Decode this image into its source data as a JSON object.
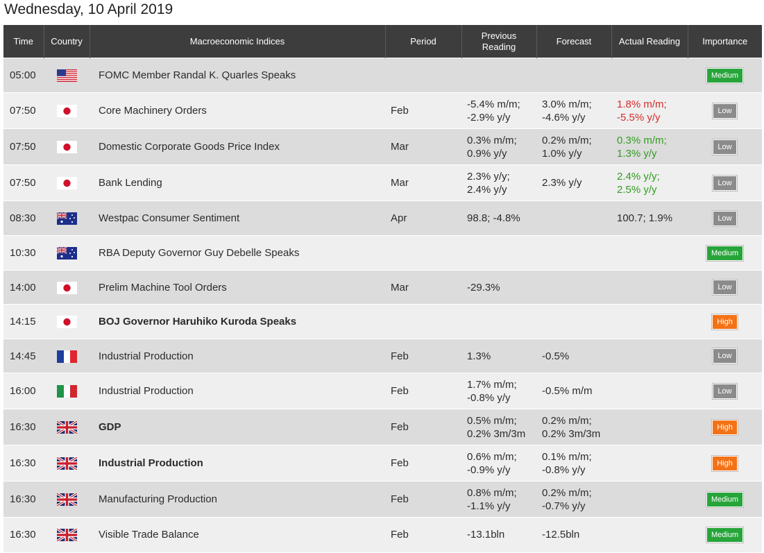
{
  "date_title": "Wednesday, 10 April 2019",
  "headers": {
    "time": "Time",
    "country": "Country",
    "indices": "Macroeconomic Indices",
    "period": "Period",
    "previous_line1": "Previous",
    "previous_line2": "Reading",
    "forecast": "Forecast",
    "actual": "Actual Reading",
    "importance": "Importance"
  },
  "rows": [
    {
      "time": "05:00",
      "flag": "us",
      "event": "FOMC Member Randal K. Quarles Speaks",
      "period": "",
      "prev": [
        "",
        ""
      ],
      "fore": [
        "",
        ""
      ],
      "actual": [
        "",
        ""
      ],
      "actual_class": "",
      "importance": "Medium",
      "bold": false
    },
    {
      "time": "07:50",
      "flag": "jp",
      "event": "Core Machinery Orders",
      "period": "Feb",
      "prev": [
        "-5.4% m/m;",
        "-2.9% y/y"
      ],
      "fore": [
        "3.0% m/m;",
        "-4.6% y/y"
      ],
      "actual": [
        "1.8% m/m;",
        "-5.5% y/y"
      ],
      "actual_class": "neg",
      "importance": "Low",
      "bold": false
    },
    {
      "time": "07:50",
      "flag": "jp",
      "event": "Domestic Corporate Goods Price Index",
      "period": "Mar",
      "prev": [
        "0.3% m/m;",
        "0.9% y/y"
      ],
      "fore": [
        "0.2% m/m;",
        "1.0% y/y"
      ],
      "actual": [
        "0.3% m/m;",
        "1.3% y/y"
      ],
      "actual_class": "pos",
      "importance": "Low",
      "bold": false
    },
    {
      "time": "07:50",
      "flag": "jp",
      "event": "Bank Lending",
      "period": "Mar",
      "prev": [
        "2.3% y/y;",
        "2.4% y/y"
      ],
      "fore": [
        "2.3% y/y",
        ""
      ],
      "actual": [
        "2.4% y/y;",
        "2.5% y/y"
      ],
      "actual_class": "pos",
      "importance": "Low",
      "bold": false
    },
    {
      "time": "08:30",
      "flag": "au",
      "event": "Westpac Consumer Sentiment",
      "period": "Apr",
      "prev": [
        "98.8; -4.8%",
        ""
      ],
      "fore": [
        "",
        ""
      ],
      "actual": [
        "100.7; 1.9%",
        ""
      ],
      "actual_class": "",
      "importance": "Low",
      "bold": false
    },
    {
      "time": "10:30",
      "flag": "au",
      "event": "RBA Deputy Governor Guy Debelle Speaks",
      "period": "",
      "prev": [
        "",
        ""
      ],
      "fore": [
        "",
        ""
      ],
      "actual": [
        "",
        ""
      ],
      "actual_class": "",
      "importance": "Medium",
      "bold": false
    },
    {
      "time": "14:00",
      "flag": "jp",
      "event": "Prelim Machine Tool Orders",
      "period": "Mar",
      "prev": [
        "-29.3%",
        ""
      ],
      "fore": [
        "",
        ""
      ],
      "actual": [
        "",
        ""
      ],
      "actual_class": "",
      "importance": "Low",
      "bold": false
    },
    {
      "time": "14:15",
      "flag": "jp",
      "event": "BOJ Governor Haruhiko Kuroda Speaks",
      "period": "",
      "prev": [
        "",
        ""
      ],
      "fore": [
        "",
        ""
      ],
      "actual": [
        "",
        ""
      ],
      "actual_class": "",
      "importance": "High",
      "bold": true
    },
    {
      "time": "14:45",
      "flag": "fr",
      "event": "Industrial Production",
      "period": "Feb",
      "prev": [
        "1.3%",
        ""
      ],
      "fore": [
        "-0.5%",
        ""
      ],
      "actual": [
        "",
        ""
      ],
      "actual_class": "",
      "importance": "Low",
      "bold": false
    },
    {
      "time": "16:00",
      "flag": "it",
      "event": "Industrial Production",
      "period": "Feb",
      "prev": [
        "1.7% m/m;",
        "-0.8% y/y"
      ],
      "fore": [
        "-0.5% m/m",
        ""
      ],
      "actual": [
        "",
        ""
      ],
      "actual_class": "",
      "importance": "Low",
      "bold": false
    },
    {
      "time": "16:30",
      "flag": "gb",
      "event": "GDP",
      "period": "Feb",
      "prev": [
        "0.5% m/m;",
        "0.2% 3m/3m"
      ],
      "fore": [
        "0.2% m/m;",
        "0.2% 3m/3m"
      ],
      "actual": [
        "",
        ""
      ],
      "actual_class": "",
      "importance": "High",
      "bold": true
    },
    {
      "time": "16:30",
      "flag": "gb",
      "event": "Industrial Production",
      "period": "Feb",
      "prev": [
        "0.6% m/m;",
        "-0.9% y/y"
      ],
      "fore": [
        "0.1% m/m;",
        "-0.8% y/y"
      ],
      "actual": [
        "",
        ""
      ],
      "actual_class": "",
      "importance": "High",
      "bold": true
    },
    {
      "time": "16:30",
      "flag": "gb",
      "event": "Manufacturing Production",
      "period": "Feb",
      "prev": [
        "0.8% m/m;",
        "-1.1% y/y"
      ],
      "fore": [
        "0.2% m/m;",
        "-0.7% y/y"
      ],
      "actual": [
        "",
        ""
      ],
      "actual_class": "",
      "importance": "Medium",
      "bold": false
    },
    {
      "time": "16:30",
      "flag": "gb",
      "event": "Visible Trade Balance",
      "period": "Feb",
      "prev": [
        "-13.1bln",
        ""
      ],
      "fore": [
        "-12.5bln",
        ""
      ],
      "actual": [
        "",
        ""
      ],
      "actual_class": "",
      "importance": "Medium",
      "bold": false
    }
  ],
  "colors": {
    "header_bg": "#3d3d3d",
    "row_odd": "#dcdcdc",
    "row_even": "#efefef",
    "actual_negative": "#d62b2b",
    "actual_positive": "#2f9c1e",
    "importance_medium": "#27a53a",
    "importance_low": "#8b8b8b",
    "importance_high": "#f47216"
  },
  "flag_icons": {
    "us": "us-flag-icon",
    "jp": "japan-flag-icon",
    "au": "australia-flag-icon",
    "fr": "france-flag-icon",
    "it": "italy-flag-icon",
    "gb": "uk-flag-icon"
  }
}
